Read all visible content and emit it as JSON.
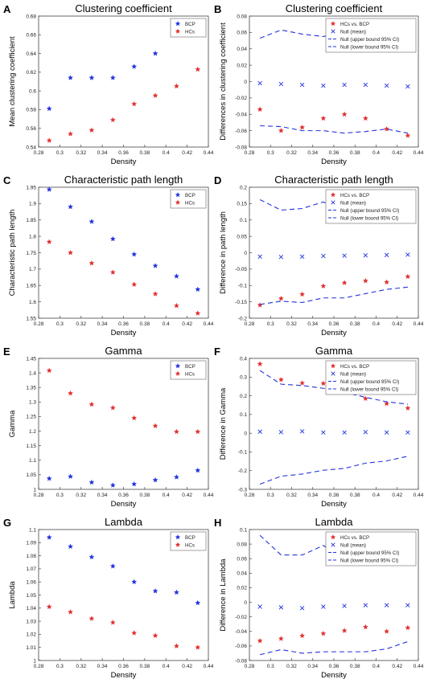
{
  "chart_data": [
    {
      "letter": "A",
      "type": "scatter",
      "title": "Clustering coefficient",
      "xlabel": "Density",
      "ylabel": "Mean clustering coefficient",
      "xlim": [
        0.28,
        0.44
      ],
      "ylim": [
        0.54,
        0.68
      ],
      "xticks": [
        "0.28",
        "0.3",
        "0.32",
        "0.34",
        "0.36",
        "0.38",
        "0.4",
        "0.42",
        "0.44"
      ],
      "yticks": [
        "0.54",
        "0.56",
        "0.58",
        "0.6",
        "0.62",
        "0.64",
        "0.66",
        "0.68"
      ],
      "legend": {
        "position": "top-right"
      },
      "x": [
        0.29,
        0.31,
        0.33,
        0.35,
        0.37,
        0.39,
        0.41,
        0.43
      ],
      "series": [
        {
          "name": "BCP",
          "marker": "star",
          "color": "#2233dd",
          "values": [
            0.581,
            0.614,
            0.614,
            0.614,
            0.626,
            0.64,
            0.664,
            null
          ]
        },
        {
          "name": "HCs",
          "marker": "star",
          "color": "#e03030",
          "values": [
            0.547,
            0.554,
            0.558,
            0.569,
            0.586,
            0.595,
            0.605,
            0.623
          ]
        }
      ]
    },
    {
      "letter": "B",
      "type": "scatter",
      "title": "Clustering coefficient",
      "xlabel": "Density",
      "ylabel": "Differences in clustering coefficient",
      "xlim": [
        0.28,
        0.44
      ],
      "ylim": [
        -0.08,
        0.08
      ],
      "xticks": [
        "0.28",
        "0.3",
        "0.32",
        "0.34",
        "0.36",
        "0.38",
        "0.4",
        "0.42",
        "0.44"
      ],
      "yticks": [
        "-0.08",
        "-0.06",
        "-0.04",
        "-0.02",
        "0",
        "0.02",
        "0.04",
        "0.06",
        "0.08"
      ],
      "legend": {
        "position": "top-right"
      },
      "x": [
        0.29,
        0.31,
        0.33,
        0.35,
        0.37,
        0.39,
        0.41,
        0.43
      ],
      "series": [
        {
          "name": "HCs vs. BCP",
          "marker": "star",
          "color": "#e03030",
          "values": [
            -0.034,
            -0.06,
            -0.056,
            -0.045,
            -0.04,
            -0.045,
            -0.058,
            -0.066
          ]
        },
        {
          "name": "Null (mean)",
          "marker": "x",
          "color": "#2233dd",
          "values": [
            -0.002,
            -0.003,
            -0.004,
            -0.005,
            -0.004,
            -0.004,
            -0.005,
            -0.006
          ]
        },
        {
          "name": "Null (upper bound 95% CI)",
          "marker": "dash",
          "color": "#2233dd",
          "values": [
            0.053,
            0.063,
            0.058,
            0.055,
            0.06,
            0.062,
            0.063,
            0.062
          ]
        },
        {
          "name": "Null (lower bound 95% CI)",
          "marker": "dash",
          "color": "#2233dd",
          "values": [
            -0.054,
            -0.055,
            -0.06,
            -0.06,
            -0.063,
            -0.061,
            -0.058,
            -0.063
          ]
        }
      ]
    },
    {
      "letter": "C",
      "type": "scatter",
      "title": "Characteristic path length",
      "xlabel": "Density",
      "ylabel": "Characteristic path length",
      "xlim": [
        0.28,
        0.44
      ],
      "ylim": [
        1.55,
        1.95
      ],
      "xticks": [
        "0.28",
        "0.3",
        "0.32",
        "0.34",
        "0.36",
        "0.38",
        "0.4",
        "0.42",
        "0.44"
      ],
      "yticks": [
        "1.55",
        "1.6",
        "1.65",
        "1.7",
        "1.75",
        "1.8",
        "1.85",
        "1.9",
        "1.95"
      ],
      "legend": {
        "position": "top-right"
      },
      "x": [
        0.29,
        0.31,
        0.33,
        0.35,
        0.37,
        0.39,
        0.41,
        0.43
      ],
      "series": [
        {
          "name": "BCP",
          "marker": "star",
          "color": "#2233dd",
          "values": [
            1.943,
            1.89,
            1.845,
            1.792,
            1.745,
            1.71,
            1.678,
            1.638
          ]
        },
        {
          "name": "HCs",
          "marker": "star",
          "color": "#e03030",
          "values": [
            1.783,
            1.75,
            1.718,
            1.69,
            1.653,
            1.624,
            1.588,
            1.565
          ]
        }
      ]
    },
    {
      "letter": "D",
      "type": "scatter",
      "title": "Characteristic path length",
      "xlabel": "Density",
      "ylabel": "Difference in path length",
      "xlim": [
        0.28,
        0.44
      ],
      "ylim": [
        -0.2,
        0.2
      ],
      "xticks": [
        "0.28",
        "0.3",
        "0.32",
        "0.34",
        "0.36",
        "0.38",
        "0.4",
        "0.42",
        "0.44"
      ],
      "yticks": [
        "-0.2",
        "-0.15",
        "-0.1",
        "-0.05",
        "0",
        "0.05",
        "0.1",
        "0.15",
        "0.2"
      ],
      "legend": {
        "position": "top-right"
      },
      "x": [
        0.29,
        0.31,
        0.33,
        0.35,
        0.37,
        0.39,
        0.41,
        0.43
      ],
      "series": [
        {
          "name": "HCs vs. BCP",
          "marker": "star",
          "color": "#e03030",
          "values": [
            -0.16,
            -0.14,
            -0.127,
            -0.102,
            -0.092,
            -0.086,
            -0.09,
            -0.073
          ]
        },
        {
          "name": "Null (mean)",
          "marker": "x",
          "color": "#2233dd",
          "values": [
            -0.012,
            -0.013,
            -0.012,
            -0.01,
            -0.009,
            -0.008,
            -0.007,
            -0.006
          ]
        },
        {
          "name": "Null (upper bound 95% CI)",
          "marker": "dash",
          "color": "#2233dd",
          "values": [
            0.162,
            0.13,
            0.135,
            0.155,
            0.128,
            0.12,
            0.158,
            0.118
          ]
        },
        {
          "name": "Null (lower bound 95% CI)",
          "marker": "dash",
          "color": "#2233dd",
          "values": [
            -0.158,
            -0.148,
            -0.152,
            -0.138,
            -0.138,
            -0.125,
            -0.112,
            -0.105
          ]
        }
      ]
    },
    {
      "letter": "E",
      "type": "scatter",
      "title": "Gamma",
      "xlabel": "Density",
      "ylabel": "Gamma",
      "xlim": [
        0.28,
        0.44
      ],
      "ylim": [
        1.0,
        1.45
      ],
      "xticks": [
        "0.28",
        "0.3",
        "0.32",
        "0.34",
        "0.36",
        "0.38",
        "0.4",
        "0.42",
        "0.44"
      ],
      "yticks": [
        "1",
        "1.05",
        "1.1",
        "1.15",
        "1.2",
        "1.25",
        "1.3",
        "1.35",
        "1.4",
        "1.45"
      ],
      "legend": {
        "position": "top-right"
      },
      "x": [
        0.29,
        0.31,
        0.33,
        0.35,
        0.37,
        0.39,
        0.41,
        0.43
      ],
      "series": [
        {
          "name": "BCP",
          "marker": "star",
          "color": "#2233dd",
          "values": [
            1.037,
            1.044,
            1.024,
            1.014,
            1.018,
            1.032,
            1.042,
            1.065
          ]
        },
        {
          "name": "HCs",
          "marker": "star",
          "color": "#e03030",
          "values": [
            1.408,
            1.33,
            1.292,
            1.28,
            1.245,
            1.218,
            1.198,
            1.198
          ]
        }
      ]
    },
    {
      "letter": "F",
      "type": "scatter",
      "title": "Gamma",
      "xlabel": "Density",
      "ylabel": "Difference in Gamma",
      "xlim": [
        0.28,
        0.44
      ],
      "ylim": [
        -0.3,
        0.4
      ],
      "xticks": [
        "0.28",
        "0.3",
        "0.32",
        "0.34",
        "0.36",
        "0.38",
        "0.4",
        "0.42",
        "0.44"
      ],
      "yticks": [
        "-0.3",
        "-0.2",
        "-0.1",
        "0",
        "0.1",
        "0.2",
        "0.3",
        "0.4"
      ],
      "legend": {
        "position": "top-right"
      },
      "x": [
        0.29,
        0.31,
        0.33,
        0.35,
        0.37,
        0.39,
        0.41,
        0.43
      ],
      "series": [
        {
          "name": "HCs vs. BCP",
          "marker": "star",
          "color": "#e03030",
          "values": [
            0.37,
            0.286,
            0.268,
            0.266,
            0.228,
            0.185,
            0.158,
            0.134
          ]
        },
        {
          "name": "Null (mean)",
          "marker": "x",
          "color": "#2233dd",
          "values": [
            0.008,
            0.006,
            0.01,
            0.004,
            0.004,
            0.006,
            0.004,
            0.004
          ]
        },
        {
          "name": "Null (upper bound 95% CI)",
          "marker": "dash",
          "color": "#2233dd",
          "values": [
            0.335,
            0.262,
            0.255,
            0.24,
            0.218,
            0.192,
            0.168,
            0.155
          ]
        },
        {
          "name": "Null (lower bound 95% CI)",
          "marker": "dash",
          "color": "#2233dd",
          "values": [
            -0.272,
            -0.23,
            -0.218,
            -0.198,
            -0.188,
            -0.16,
            -0.148,
            -0.123
          ]
        }
      ]
    },
    {
      "letter": "G",
      "type": "scatter",
      "title": "Lambda",
      "xlabel": "Density",
      "ylabel": "Lambda",
      "xlim": [
        0.28,
        0.44
      ],
      "ylim": [
        1.0,
        1.1
      ],
      "xticks": [
        "0.28",
        "0.3",
        "0.32",
        "0.34",
        "0.36",
        "0.38",
        "0.4",
        "0.42",
        "0.44"
      ],
      "yticks": [
        "1",
        "1.01",
        "1.02",
        "1.03",
        "1.04",
        "1.05",
        "1.06",
        "1.07",
        "1.08",
        "1.09",
        "1.1"
      ],
      "legend": {
        "position": "top-right"
      },
      "x": [
        0.29,
        0.31,
        0.33,
        0.35,
        0.37,
        0.39,
        0.41,
        0.43
      ],
      "series": [
        {
          "name": "BCP",
          "marker": "star",
          "color": "#2233dd",
          "values": [
            1.094,
            1.087,
            1.079,
            1.072,
            1.06,
            1.053,
            1.052,
            1.044
          ]
        },
        {
          "name": "HCs",
          "marker": "star",
          "color": "#e03030",
          "values": [
            1.041,
            1.037,
            1.032,
            1.029,
            1.021,
            1.019,
            1.011,
            1.01
          ]
        }
      ]
    },
    {
      "letter": "H",
      "type": "scatter",
      "title": "Lambda",
      "xlabel": "Density",
      "ylabel": "Difference in Lambda",
      "xlim": [
        0.28,
        0.44
      ],
      "ylim": [
        -0.08,
        0.1
      ],
      "xticks": [
        "0.28",
        "0.3",
        "0.32",
        "0.34",
        "0.36",
        "0.38",
        "0.4",
        "0.42",
        "0.44"
      ],
      "yticks": [
        "-0.08",
        "-0.06",
        "-0.04",
        "-0.02",
        "0",
        "0.02",
        "0.04",
        "0.06",
        "0.08",
        "0.1"
      ],
      "legend": {
        "position": "top-right"
      },
      "x": [
        0.29,
        0.31,
        0.33,
        0.35,
        0.37,
        0.39,
        0.41,
        0.43
      ],
      "series": [
        {
          "name": "HCs vs. BCP",
          "marker": "star",
          "color": "#e03030",
          "values": [
            -0.053,
            -0.05,
            -0.046,
            -0.043,
            -0.039,
            -0.034,
            -0.04,
            -0.035
          ]
        },
        {
          "name": "Null (mean)",
          "marker": "x",
          "color": "#2233dd",
          "values": [
            -0.006,
            -0.007,
            -0.008,
            -0.006,
            -0.005,
            -0.004,
            -0.004,
            -0.004
          ]
        },
        {
          "name": "Null (upper bound 95% CI)",
          "marker": "dash",
          "color": "#2233dd",
          "values": [
            0.092,
            0.065,
            0.065,
            0.078,
            0.06,
            0.058,
            0.063,
            0.055
          ]
        },
        {
          "name": "Null (lower bound 95% CI)",
          "marker": "dash",
          "color": "#2233dd",
          "values": [
            -0.072,
            -0.065,
            -0.07,
            -0.068,
            -0.068,
            -0.068,
            -0.064,
            -0.054
          ]
        }
      ]
    }
  ]
}
